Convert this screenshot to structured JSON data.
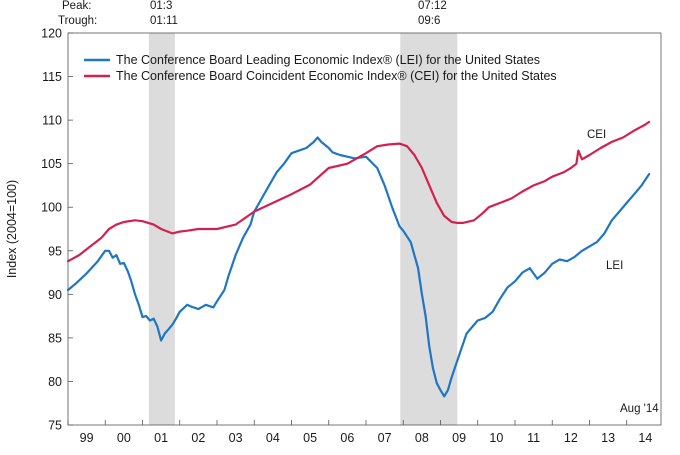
{
  "chart_data": {
    "type": "line",
    "ylabel": "Index (2004=100)",
    "ylim": [
      75,
      120
    ],
    "y_ticks": [
      "75",
      "80",
      "85",
      "90",
      "95",
      "100",
      "105",
      "110",
      "115",
      "120"
    ],
    "xlim": [
      1999.0,
      2014.92
    ],
    "x_ticks": [
      {
        "label": "99",
        "x": 1999.5
      },
      {
        "label": "00",
        "x": 2000.5
      },
      {
        "label": "01",
        "x": 2001.5
      },
      {
        "label": "02",
        "x": 2002.5
      },
      {
        "label": "03",
        "x": 2003.5
      },
      {
        "label": "04",
        "x": 2004.5
      },
      {
        "label": "05",
        "x": 2005.5
      },
      {
        "label": "06",
        "x": 2006.5
      },
      {
        "label": "07",
        "x": 2007.5
      },
      {
        "label": "08",
        "x": 2008.5
      },
      {
        "label": "09",
        "x": 2009.5
      },
      {
        "label": "10",
        "x": 2010.5
      },
      {
        "label": "11",
        "x": 2011.5
      },
      {
        "label": "12",
        "x": 2012.5
      },
      {
        "label": "13",
        "x": 2013.5
      },
      {
        "label": "14",
        "x": 2014.5
      }
    ],
    "recessions": [
      {
        "peak": "01:3",
        "trough": "01:11",
        "start": 2001.17,
        "end": 2001.87
      },
      {
        "peak": "07:12",
        "trough": "09:6",
        "start": 2007.92,
        "end": 2009.45
      }
    ],
    "peak_label": "Peak:",
    "trough_label": "Trough:",
    "series": [
      {
        "name": "The Conference Board Leading Economic Index® (LEI) for the United States",
        "short": "LEI",
        "color": "#1f77c4",
        "x": [
          1999.0,
          1999.2,
          1999.5,
          1999.8,
          2000.0,
          2000.1,
          2000.2,
          2000.3,
          2000.4,
          2000.5,
          2000.6,
          2000.7,
          2000.8,
          2000.9,
          2001.0,
          2001.1,
          2001.2,
          2001.3,
          2001.4,
          2001.5,
          2001.6,
          2001.7,
          2001.8,
          2001.9,
          2002.0,
          2002.2,
          2002.3,
          2002.5,
          2002.7,
          2002.9,
          2003.0,
          2003.2,
          2003.3,
          2003.5,
          2003.7,
          2003.9,
          2004.0,
          2004.2,
          2004.4,
          2004.6,
          2004.8,
          2005.0,
          2005.2,
          2005.4,
          2005.6,
          2005.7,
          2005.8,
          2006.0,
          2006.1,
          2006.3,
          2006.5,
          2006.7,
          2007.0,
          2007.3,
          2007.5,
          2007.7,
          2007.9,
          2008.0,
          2008.2,
          2008.4,
          2008.5,
          2008.6,
          2008.7,
          2008.8,
          2008.9,
          2009.0,
          2009.1,
          2009.2,
          2009.3,
          2009.5,
          2009.7,
          2010.0,
          2010.2,
          2010.4,
          2010.6,
          2010.8,
          2011.0,
          2011.2,
          2011.4,
          2011.6,
          2011.8,
          2012.0,
          2012.2,
          2012.4,
          2012.6,
          2012.8,
          2013.0,
          2013.2,
          2013.4,
          2013.6,
          2013.8,
          2014.0,
          2014.2,
          2014.4,
          2014.6
        ],
        "values": [
          90.5,
          91.2,
          92.4,
          93.8,
          95.0,
          95.0,
          94.2,
          94.5,
          93.5,
          93.6,
          92.7,
          91.5,
          90.0,
          88.8,
          87.4,
          87.5,
          87.0,
          87.2,
          86.3,
          84.7,
          85.5,
          86.0,
          86.5,
          87.2,
          88.0,
          88.8,
          88.6,
          88.3,
          88.8,
          88.5,
          89.2,
          90.5,
          92.0,
          94.5,
          96.5,
          98.0,
          99.5,
          101.0,
          102.5,
          104.0,
          105.0,
          106.2,
          106.5,
          106.8,
          107.5,
          108.0,
          107.5,
          106.8,
          106.3,
          106.0,
          105.8,
          105.6,
          105.8,
          104.5,
          102.5,
          100.0,
          97.8,
          97.3,
          96.0,
          93.0,
          90.0,
          87.5,
          84.0,
          81.5,
          79.8,
          79.0,
          78.3,
          79.0,
          80.5,
          83.0,
          85.5,
          87.0,
          87.3,
          88.0,
          89.5,
          90.8,
          91.5,
          92.5,
          93.0,
          91.8,
          92.5,
          93.5,
          94.0,
          93.8,
          94.3,
          95.0,
          95.5,
          96.0,
          97.0,
          98.5,
          99.5,
          100.5,
          101.5,
          102.5,
          103.8
        ]
      },
      {
        "name": "The Conference Board Coincident Economic Index® (CEI) for the United States",
        "short": "CEI",
        "color": "#d4204f",
        "x": [
          1999.0,
          1999.3,
          1999.6,
          1999.9,
          2000.1,
          2000.3,
          2000.5,
          2000.8,
          2001.0,
          2001.3,
          2001.5,
          2001.8,
          2002.0,
          2002.2,
          2002.5,
          2002.8,
          2003.0,
          2003.5,
          2004.0,
          2004.5,
          2005.0,
          2005.5,
          2006.0,
          2006.5,
          2007.0,
          2007.3,
          2007.6,
          2007.9,
          2008.1,
          2008.3,
          2008.5,
          2008.7,
          2008.9,
          2009.1,
          2009.3,
          2009.45,
          2009.6,
          2009.9,
          2010.1,
          2010.3,
          2010.6,
          2010.9,
          2011.2,
          2011.5,
          2011.8,
          2012.0,
          2012.3,
          2012.5,
          2012.65,
          2012.7,
          2012.8,
          2013.0,
          2013.3,
          2013.6,
          2013.9,
          2014.2,
          2014.5,
          2014.6
        ],
        "values": [
          93.8,
          94.5,
          95.5,
          96.5,
          97.5,
          98.0,
          98.3,
          98.5,
          98.4,
          98.0,
          97.5,
          97.0,
          97.2,
          97.3,
          97.5,
          97.5,
          97.5,
          98.0,
          99.5,
          100.5,
          101.5,
          102.6,
          104.5,
          105.0,
          106.2,
          107.0,
          107.2,
          107.3,
          107.0,
          106.0,
          104.5,
          102.5,
          100.5,
          99.0,
          98.3,
          98.2,
          98.2,
          98.5,
          99.2,
          100.0,
          100.5,
          101.0,
          101.8,
          102.5,
          103.0,
          103.5,
          104.0,
          104.5,
          105.0,
          106.5,
          105.5,
          106.0,
          106.8,
          107.5,
          108.0,
          108.8,
          109.5,
          109.8
        ]
      }
    ],
    "annotation": "Aug '14"
  }
}
